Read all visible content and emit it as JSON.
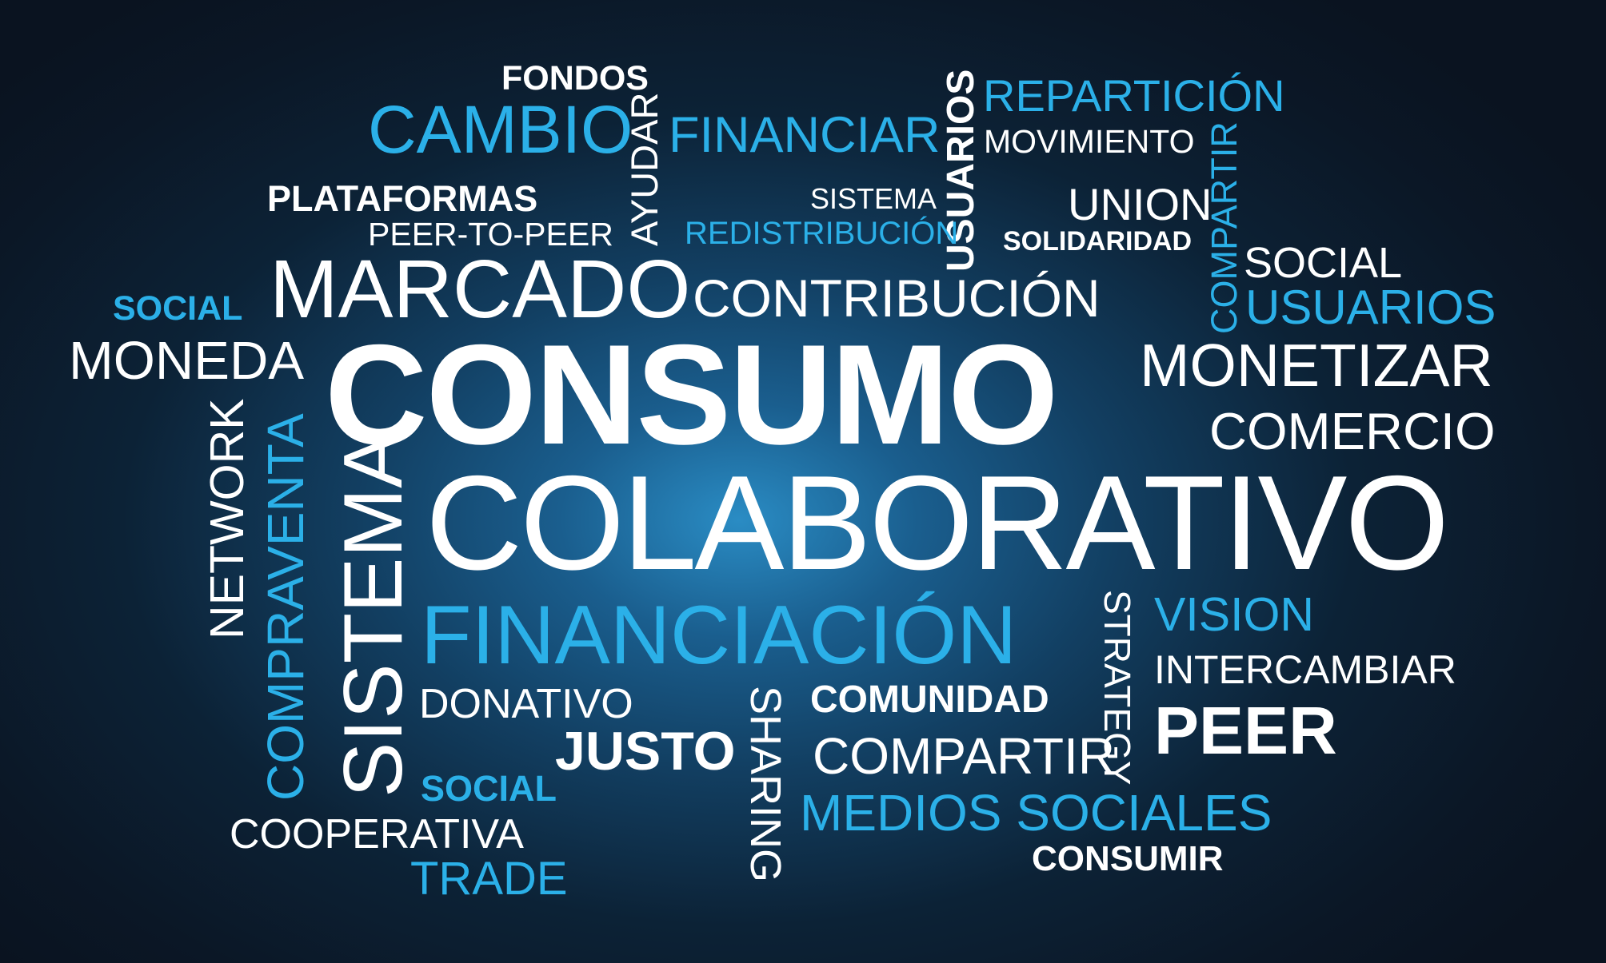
{
  "words": {
    "fondos": "FONDOS",
    "cambio": "CAMBIO",
    "ayudar": "AYUDAR",
    "financiar": "FINANCIAR",
    "usuarios_vertical": "USUARIOS",
    "reparticion": "REPARTICIÓN",
    "movimiento": "MOVIMIENTO",
    "plataformas": "PLATAFORMAS",
    "sistema_small": "SISTEMA",
    "union": "UNION",
    "compartir_vertical": "COMPARTIR",
    "peer_to_peer": "PEER-TO-PEER",
    "redistribucion": "REDISTRIBUCIÓN",
    "solidaridad": "SOLIDARIDAD",
    "social_right": "SOCIAL",
    "usuarios_right": "USUARIOS",
    "marcado": "MARCADO",
    "contribucion": "CONTRIBUCIÓN",
    "social_left": "SOCIAL",
    "moneda": "MONEDA",
    "consumo": "CONSUMO",
    "monetizar": "MONETIZAR",
    "comercio": "COMERCIO",
    "network": "NETWORK",
    "compraventa": "COMPRAVENTA",
    "sistema_large": "SISTEMA",
    "colaborativo": "COLABORATIVO",
    "financiacion": "FINANCIACIÓN",
    "strategy": "STRATEGY",
    "vision": "VISION",
    "intercambiar": "INTERCAMBIAR",
    "donativo": "DONATIVO",
    "sharing": "SHARING",
    "comunidad": "COMUNIDAD",
    "peer": "PEER",
    "justo": "JUSTO",
    "compartir": "COMPARTIR",
    "social_bottom": "SOCIAL",
    "medios_sociales": "MEDIOS SOCIALES",
    "cooperativa": "COOPERATIVA",
    "consumir": "CONSUMIR",
    "trade": "TRADE"
  },
  "colors": {
    "white": "#ffffff",
    "blue": "#2bb0e8",
    "background_center": "#2a8cc4",
    "background_edge": "#0a1320"
  }
}
